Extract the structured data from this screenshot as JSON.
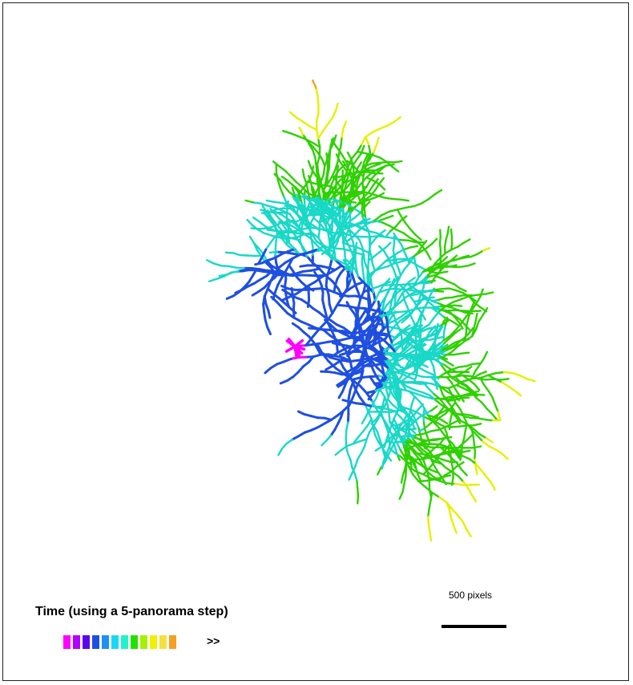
{
  "legend": {
    "title": "Time (using a 5-panorama step)",
    "more": ">>",
    "colors": [
      "#ff00ff",
      "#b100ff",
      "#5b00f0",
      "#1f4fe0",
      "#1e90f0",
      "#19d8f5",
      "#22f2cc",
      "#22e000",
      "#a6f000",
      "#f0f000",
      "#f5e040",
      "#f5a020"
    ]
  },
  "scale": {
    "label": "500 pixels"
  },
  "network_colors": {
    "center": "#ff00ff",
    "inner": "#1f4fe0",
    "mid": "#19d8c8",
    "green": "#2fd000",
    "yellow": "#e6f000",
    "outer": "#f5a020"
  }
}
